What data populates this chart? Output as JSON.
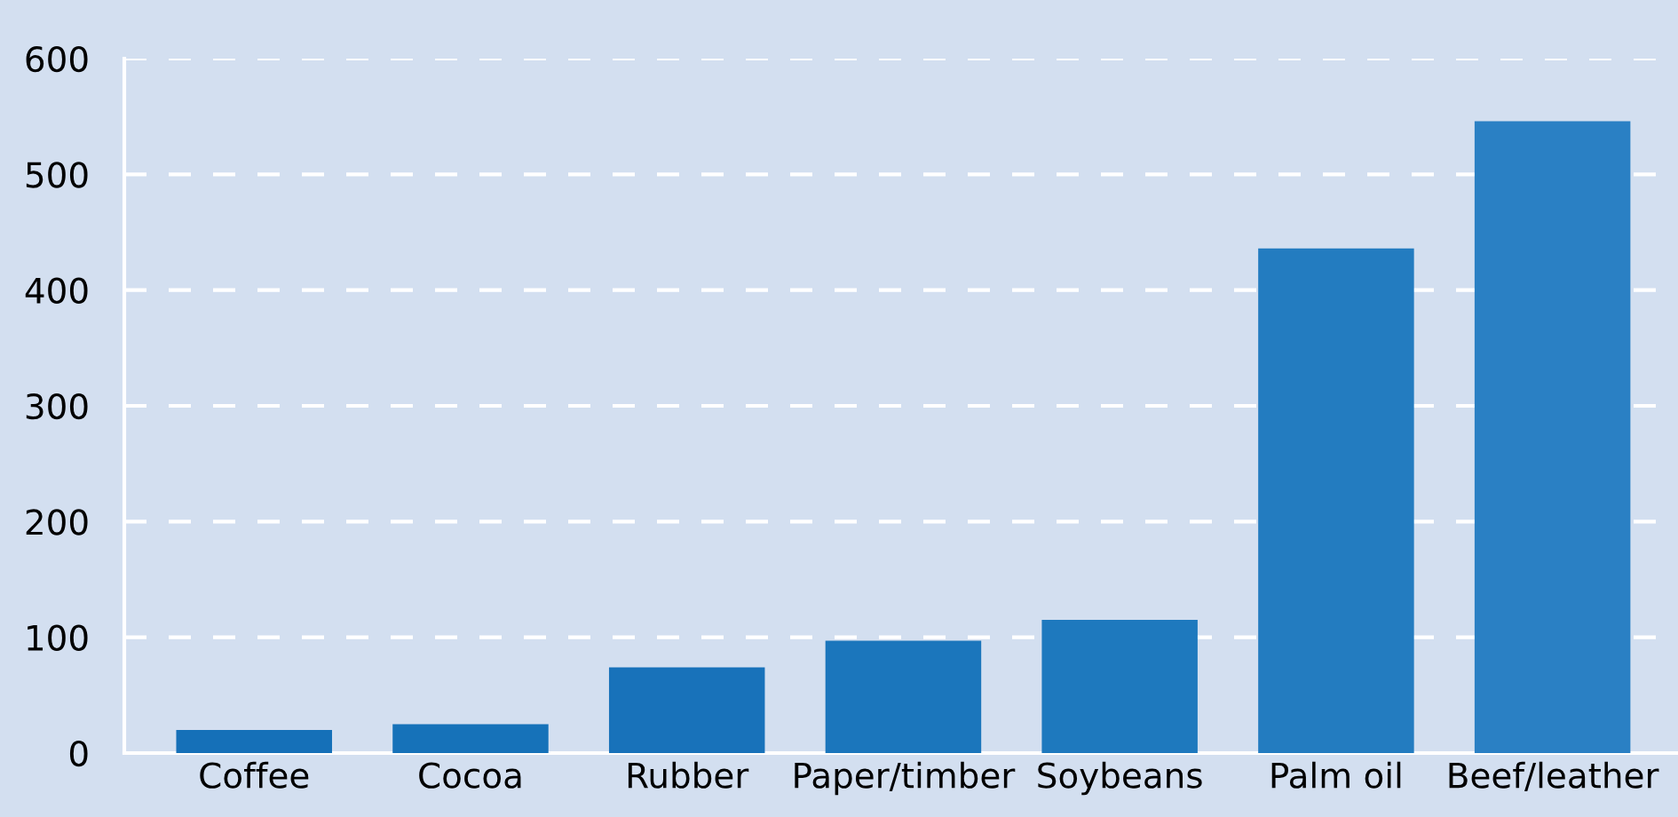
{
  "chart_data": {
    "type": "bar",
    "categories": [
      "Coffee",
      "Cocoa",
      "Rubber",
      "Paper/timber",
      "Soybeans",
      "Palm oil",
      "Beef/leather"
    ],
    "values": [
      20,
      25,
      74,
      97,
      115,
      436,
      546
    ],
    "colors": [
      "#1570b8",
      "#1672b9",
      "#1872ba",
      "#1b76bc",
      "#1e79be",
      "#237cc0",
      "#2a80c4"
    ],
    "ylim": [
      0,
      600
    ],
    "yticks": [
      0,
      100,
      200,
      300,
      400,
      500,
      600
    ],
    "grid": "y"
  }
}
